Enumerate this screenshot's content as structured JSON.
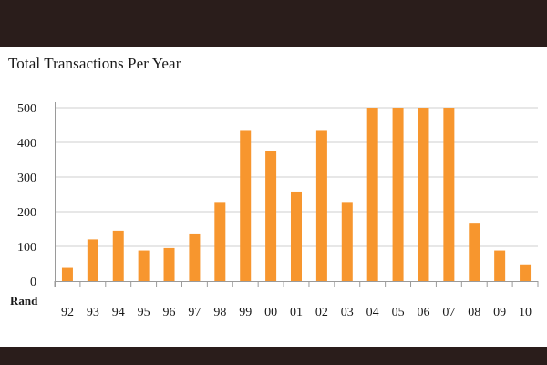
{
  "chart_data": {
    "type": "bar",
    "title": "Total Transactions Per Year",
    "ylabel": "Rand",
    "xlabel": "",
    "categories": [
      "92",
      "93",
      "94",
      "95",
      "96",
      "97",
      "98",
      "99",
      "00",
      "01",
      "02",
      "03",
      "04",
      "05",
      "06",
      "07",
      "08",
      "09",
      "10"
    ],
    "values": [
      38,
      120,
      145,
      88,
      95,
      137,
      228,
      433,
      375,
      258,
      433,
      228,
      500,
      500,
      500,
      500,
      168,
      88,
      48
    ],
    "ylim": [
      0,
      500
    ],
    "yticks": [
      "0",
      "100",
      "200",
      "300",
      "400",
      "500"
    ],
    "grid": "horizontal",
    "bar_color": "#f7962e",
    "grid_color": "#cfcfcf",
    "axis_color": "#9a9a9a"
  }
}
